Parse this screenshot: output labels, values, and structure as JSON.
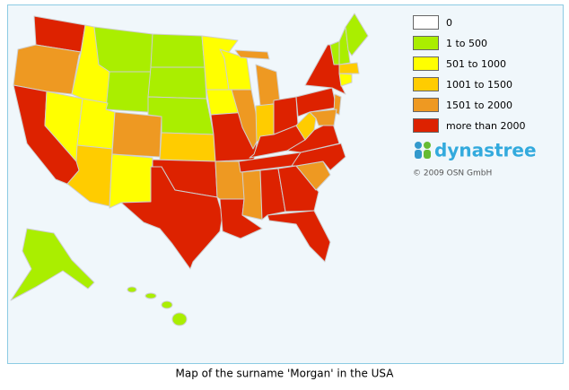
{
  "legend": [
    {
      "label": "0",
      "color": "#ffffff"
    },
    {
      "label": "1 to 500",
      "color": "#aaee00"
    },
    {
      "label": "501 to 1000",
      "color": "#ffff00"
    },
    {
      "label": "1001 to 1500",
      "color": "#ffcc00"
    },
    {
      "label": "1501 to 2000",
      "color": "#ee9922"
    },
    {
      "label": "more than 2000",
      "color": "#dd2200"
    }
  ],
  "logo": "dynastree",
  "copyright": "© 2009 OSN GmbH",
  "caption": "Map of the surname 'Morgan' in the USA"
}
